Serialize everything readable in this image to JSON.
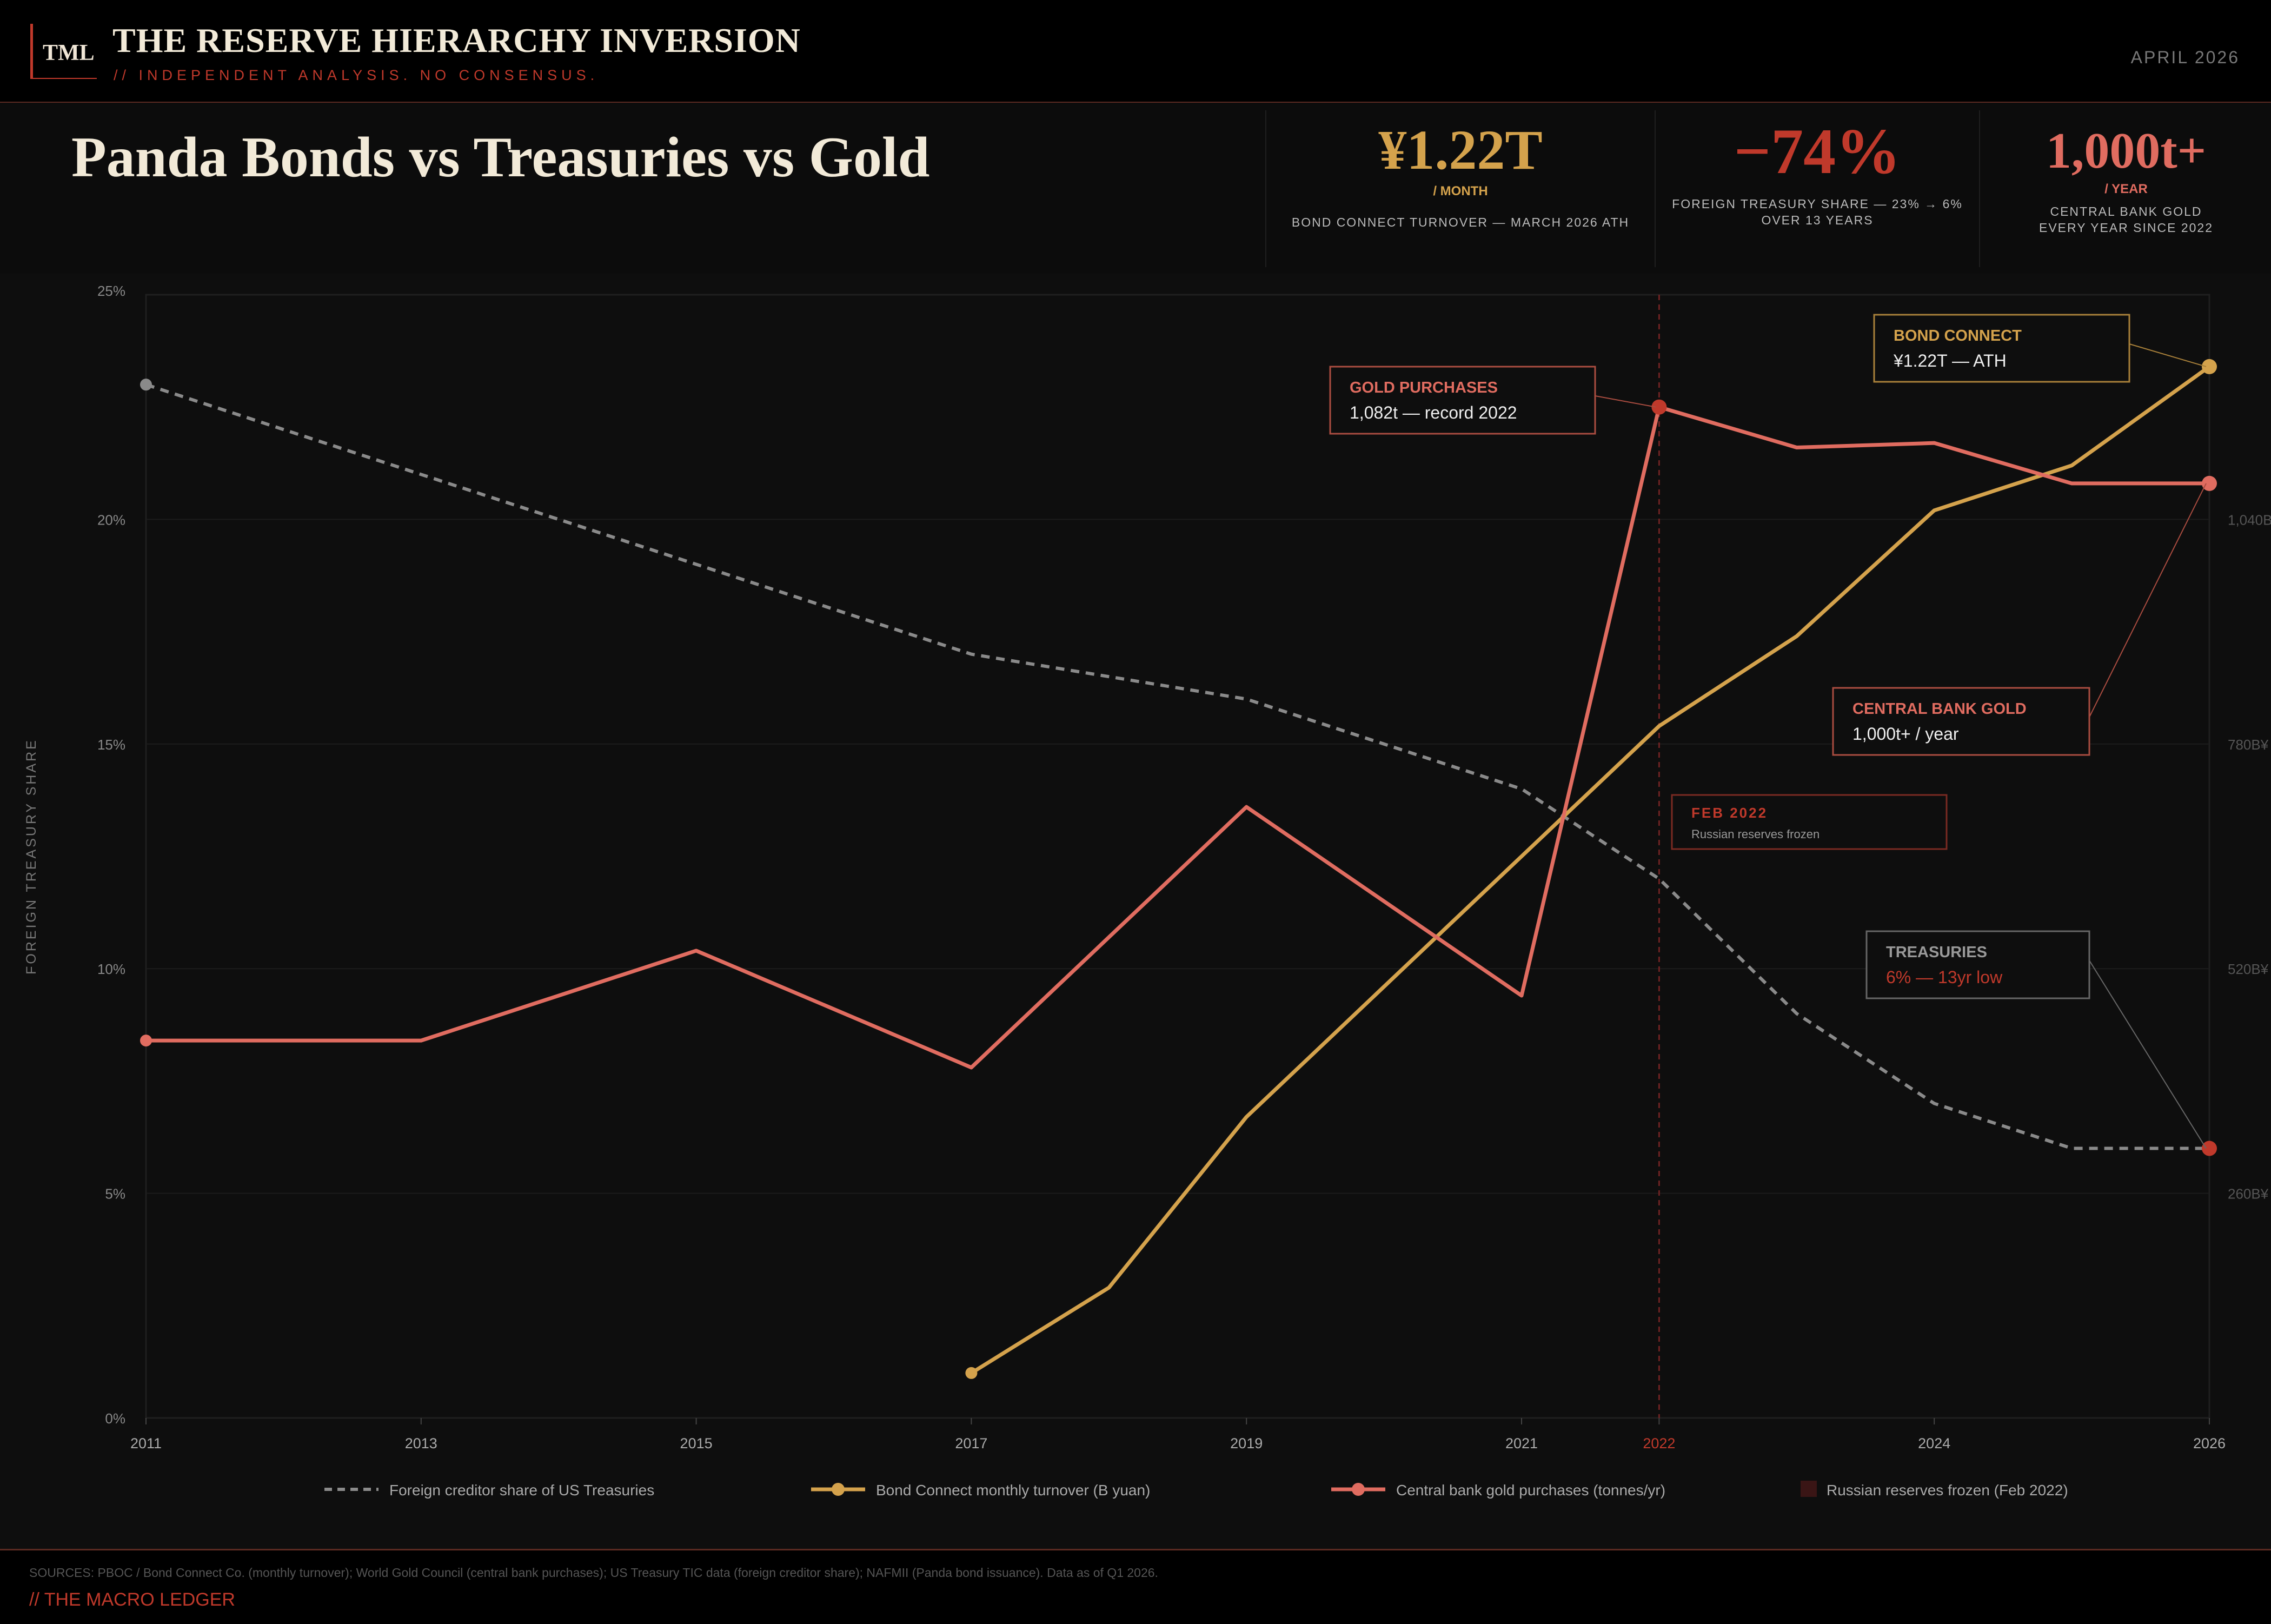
{
  "header": {
    "logo": "TML",
    "title": "THE RESERVE HIERARCHY INVERSION",
    "subtitle": "// INDEPENDENT ANALYSIS. NO CONSENSUS.",
    "date": "APRIL 2026"
  },
  "hero": {
    "title": "Panda Bonds vs Treasuries vs Gold",
    "stats": [
      {
        "value": "¥1.22T",
        "unit": "/ MONTH",
        "desc_lines": [
          "BOND CONNECT TURNOVER — MARCH 2026 ATH"
        ],
        "color": "#d4a24c"
      },
      {
        "value": "−74%",
        "unit": "",
        "desc_lines": [
          "FOREIGN TREASURY SHARE — 23% → 6%",
          "OVER 13 YEARS"
        ],
        "color": "#c0392b"
      },
      {
        "value": "1,000t+",
        "unit": "/ YEAR",
        "desc_lines": [
          "CENTRAL BANK GOLD",
          "EVERY YEAR SINCE 2022"
        ],
        "color": "#e06c60"
      }
    ]
  },
  "chart_data": {
    "type": "line",
    "y_left": {
      "label": "FOREIGN TREASURY SHARE",
      "ticks": [
        "0%",
        "5%",
        "10%",
        "15%",
        "20%",
        "25%"
      ],
      "min": 0,
      "max": 25
    },
    "y_right": {
      "ticks": [
        "260B¥",
        "520B¥",
        "780B¥",
        "1,040B¥"
      ],
      "tick_values": [
        5,
        10,
        15,
        20
      ]
    },
    "x_range": [
      2011,
      2026
    ],
    "x_ticks": [
      "2011",
      "2013",
      "2015",
      "2017",
      "2019",
      "2021",
      "2022",
      "2024",
      "2026"
    ],
    "highlight_tick": "2022",
    "event_year": 2022,
    "series": [
      {
        "name": "Foreign creditor share of US Treasuries",
        "style": "dashed",
        "color": "#8a8a8a",
        "x": [
          2011,
          2013,
          2015,
          2017,
          2018,
          2019,
          2021,
          2022,
          2023,
          2024,
          2025,
          2026
        ],
        "values": [
          23,
          21,
          19,
          17,
          16.5,
          16,
          14,
          12,
          9,
          7,
          6,
          6
        ]
      },
      {
        "name": "Bond Connect monthly turnover (B yuan)",
        "style": "solid",
        "color": "#d4a24c",
        "x": [
          2017,
          2018,
          2019,
          2021,
          2022,
          2023,
          2024,
          2025,
          2026
        ],
        "values": [
          1,
          2.9,
          6.7,
          12.5,
          15.4,
          17.4,
          20.2,
          21.2,
          23.4
        ]
      },
      {
        "name": "Central bank gold purchases (tonnes/yr)",
        "style": "solid",
        "color": "#e06c60",
        "x": [
          2011,
          2013,
          2015,
          2017,
          2019,
          2021,
          2022,
          2023,
          2024,
          2025,
          2026
        ],
        "values": [
          8.4,
          8.4,
          10.4,
          7.8,
          13.6,
          9.4,
          22.5,
          21.6,
          21.7,
          20.8,
          20.8
        ]
      }
    ],
    "legend": [
      {
        "label": "Foreign creditor share of US Treasuries",
        "kind": "dashed",
        "color": "#8a8a8a"
      },
      {
        "label": "Bond Connect monthly turnover (B yuan)",
        "kind": "line-dot",
        "color": "#d4a24c"
      },
      {
        "label": "Central bank gold purchases (tonnes/yr)",
        "kind": "line-dot",
        "color": "#e06c60"
      },
      {
        "label": "Russian reserves frozen (Feb 2022)",
        "kind": "square",
        "color": "#3a1515"
      }
    ],
    "annotations": [
      {
        "title": "GOLD PURCHASES",
        "text": "1,082t — record 2022",
        "title_color": "#e06c60",
        "text_color": "#eee",
        "border": "#a94c40",
        "target_x": 2022,
        "target_y": 22.5
      },
      {
        "title": "BOND CONNECT",
        "text": "¥1.22T — ATH",
        "title_color": "#d4a24c",
        "text_color": "#eee",
        "border": "#a8803a",
        "target_x": 2026,
        "target_y": 23.4
      },
      {
        "title": "CENTRAL BANK GOLD",
        "text": "1,000t+ / year",
        "title_color": "#e06c60",
        "text_color": "#eee",
        "border": "#a94c40",
        "target_x": 2026,
        "target_y": 20.8
      },
      {
        "title": "FEB 2022",
        "text": "Russian reserves frozen",
        "title_color": "#c0392b",
        "text_color": "#999",
        "border": "#7a2a22",
        "target_x": null,
        "target_y": null
      },
      {
        "title": "TREASURIES",
        "text": "6% — 13yr low",
        "title_color": "#999",
        "text_color": "#c0392b",
        "border": "#666",
        "target_x": 2026,
        "target_y": 6
      }
    ]
  },
  "footer": {
    "sources": "SOURCES: PBOC / Bond Connect Co. (monthly turnover); World Gold Council (central bank purchases); US Treasury TIC data (foreign creditor share); NAFMII (Panda bond issuance). Data as of Q1 2026.",
    "brand": "// THE MACRO LEDGER"
  }
}
